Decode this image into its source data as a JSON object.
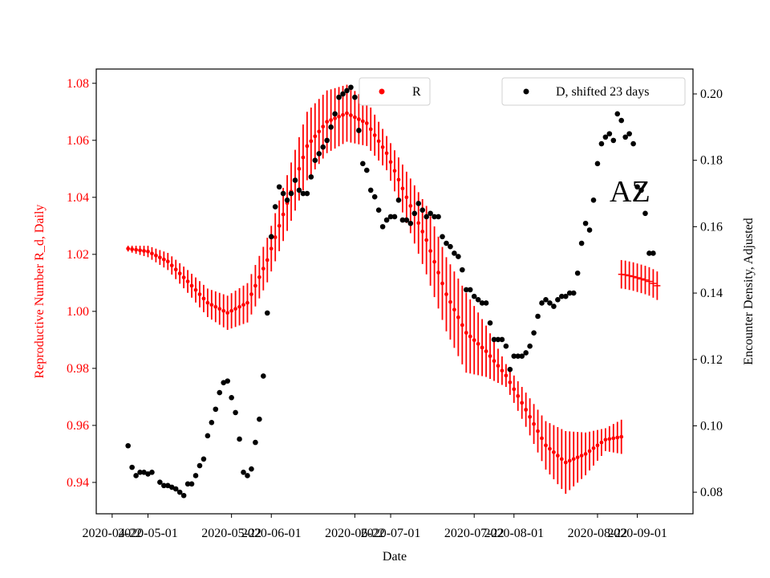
{
  "chart_data": {
    "type": "scatter",
    "xlabel": "Date",
    "ylabel_left": "Reproductive Number R_d, Daily",
    "ylabel_right": "Encounter Density, Adjusted",
    "annotation": "AZ",
    "x_range": [
      "2020-04-18",
      "2020-09-15"
    ],
    "ylim_left": [
      0.929,
      1.085
    ],
    "ylim_right": [
      0.0735,
      0.2075
    ],
    "x_ticks": [
      "2020-04-22",
      "2020-05-01",
      "2020-05-22",
      "2020-06-01",
      "2020-06-22",
      "2020-07-01",
      "2020-07-22",
      "2020-08-01",
      "2020-08-22",
      "2020-09-01"
    ],
    "yticks_left": [
      "0.94",
      "0.96",
      "0.98",
      "1.00",
      "1.02",
      "1.04",
      "1.06",
      "1.08"
    ],
    "yticks_right": [
      "0.08",
      "0.10",
      "0.12",
      "0.14",
      "0.16",
      "0.18",
      "0.20"
    ],
    "grid": false,
    "colors": {
      "R": "#ff0000",
      "D": "#000000",
      "left_axis": "#ff0000"
    },
    "legend": [
      {
        "label": "R",
        "color": "#ff0000",
        "placement": "top-center"
      },
      {
        "label": "D, shifted 23 days",
        "color": "#000000",
        "placement": "top-right"
      }
    ],
    "series": [
      {
        "name": "R",
        "axis": "left",
        "anchors": [
          [
            "2020-04-26",
            1.022
          ],
          [
            "2020-05-01",
            1.021
          ],
          [
            "2020-05-06",
            1.0175
          ],
          [
            "2020-05-11",
            1.0105
          ],
          [
            "2020-05-16",
            1.003
          ],
          [
            "2020-05-21",
            0.9995
          ],
          [
            "2020-05-26",
            1.003
          ],
          [
            "2020-05-31",
            1.018
          ],
          [
            "2020-06-05",
            1.038
          ],
          [
            "2020-06-10",
            1.058
          ],
          [
            "2020-06-15",
            1.0665
          ],
          [
            "2020-06-20",
            1.0695
          ],
          [
            "2020-06-25",
            1.066
          ],
          [
            "2020-06-30",
            1.0555
          ],
          [
            "2020-07-05",
            1.04
          ],
          [
            "2020-07-10",
            1.025
          ],
          [
            "2020-07-15",
            1.006
          ],
          [
            "2020-07-20",
            0.9925
          ],
          [
            "2020-07-25",
            0.986
          ],
          [
            "2020-07-30",
            0.9775
          ],
          [
            "2020-08-04",
            0.9655
          ],
          [
            "2020-08-09",
            0.953
          ],
          [
            "2020-08-14",
            0.947
          ],
          [
            "2020-08-19",
            0.95
          ],
          [
            "2020-08-24",
            0.955
          ],
          [
            "2020-08-28",
            0.956
          ]
        ],
        "error_halfwidth": [
          [
            "2020-04-26",
            0.001
          ],
          [
            "2020-05-01",
            0.002
          ],
          [
            "2020-05-11",
            0.004
          ],
          [
            "2020-05-21",
            0.006
          ],
          [
            "2020-06-01",
            0.008
          ],
          [
            "2020-06-10",
            0.012
          ],
          [
            "2020-06-20",
            0.01
          ],
          [
            "2020-06-30",
            0.006
          ],
          [
            "2020-07-10",
            0.012
          ],
          [
            "2020-07-20",
            0.014
          ],
          [
            "2020-07-30",
            0.004
          ],
          [
            "2020-08-04",
            0.006
          ],
          [
            "2020-08-14",
            0.011
          ],
          [
            "2020-08-24",
            0.004
          ],
          [
            "2020-08-28",
            0.006
          ]
        ],
        "tail": [
          [
            "2020-08-28",
            1.013
          ],
          [
            "2020-08-29",
            1.0128
          ],
          [
            "2020-08-30",
            1.0125
          ],
          [
            "2020-08-31",
            1.0122
          ],
          [
            "2020-09-01",
            1.0118
          ],
          [
            "2020-09-02",
            1.0114
          ],
          [
            "2020-09-03",
            1.011
          ],
          [
            "2020-09-04",
            1.0105
          ],
          [
            "2020-09-05",
            1.0098
          ],
          [
            "2020-09-06",
            1.009
          ]
        ],
        "tail_error_halfwidth": 0.005
      },
      {
        "name": "D, shifted 23 days",
        "axis": "right",
        "points": [
          [
            "2020-04-26",
            0.094
          ],
          [
            "2020-04-27",
            0.0875
          ],
          [
            "2020-04-28",
            0.085
          ],
          [
            "2020-04-29",
            0.086
          ],
          [
            "2020-04-30",
            0.086
          ],
          [
            "2020-05-01",
            0.0855
          ],
          [
            "2020-05-02",
            0.086
          ],
          [
            "2020-05-04",
            0.083
          ],
          [
            "2020-05-05",
            0.082
          ],
          [
            "2020-05-06",
            0.082
          ],
          [
            "2020-05-07",
            0.0815
          ],
          [
            "2020-05-08",
            0.081
          ],
          [
            "2020-05-09",
            0.08
          ],
          [
            "2020-05-10",
            0.079
          ],
          [
            "2020-05-11",
            0.0825
          ],
          [
            "2020-05-12",
            0.0825
          ],
          [
            "2020-05-13",
            0.085
          ],
          [
            "2020-05-14",
            0.088
          ],
          [
            "2020-05-15",
            0.09
          ],
          [
            "2020-05-16",
            0.097
          ],
          [
            "2020-05-17",
            0.101
          ],
          [
            "2020-05-18",
            0.105
          ],
          [
            "2020-05-19",
            0.11
          ],
          [
            "2020-05-20",
            0.113
          ],
          [
            "2020-05-21",
            0.1135
          ],
          [
            "2020-05-22",
            0.1085
          ],
          [
            "2020-05-23",
            0.104
          ],
          [
            "2020-05-24",
            0.096
          ],
          [
            "2020-05-25",
            0.086
          ],
          [
            "2020-05-26",
            0.085
          ],
          [
            "2020-05-27",
            0.087
          ],
          [
            "2020-05-28",
            0.095
          ],
          [
            "2020-05-29",
            0.102
          ],
          [
            "2020-05-30",
            0.115
          ],
          [
            "2020-05-31",
            0.134
          ],
          [
            "2020-06-01",
            0.157
          ],
          [
            "2020-06-02",
            0.166
          ],
          [
            "2020-06-03",
            0.172
          ],
          [
            "2020-06-04",
            0.17
          ],
          [
            "2020-06-05",
            0.168
          ],
          [
            "2020-06-06",
            0.17
          ],
          [
            "2020-06-07",
            0.174
          ],
          [
            "2020-06-08",
            0.171
          ],
          [
            "2020-06-09",
            0.17
          ],
          [
            "2020-06-10",
            0.17
          ],
          [
            "2020-06-11",
            0.175
          ],
          [
            "2020-06-12",
            0.18
          ],
          [
            "2020-06-13",
            0.182
          ],
          [
            "2020-06-14",
            0.184
          ],
          [
            "2020-06-15",
            0.186
          ],
          [
            "2020-06-16",
            0.19
          ],
          [
            "2020-06-17",
            0.194
          ],
          [
            "2020-06-18",
            0.199
          ],
          [
            "2020-06-19",
            0.2
          ],
          [
            "2020-06-20",
            0.201
          ],
          [
            "2020-06-21",
            0.202
          ],
          [
            "2020-06-22",
            0.199
          ],
          [
            "2020-06-23",
            0.189
          ],
          [
            "2020-06-24",
            0.179
          ],
          [
            "2020-06-25",
            0.177
          ],
          [
            "2020-06-26",
            0.171
          ],
          [
            "2020-06-27",
            0.169
          ],
          [
            "2020-06-28",
            0.165
          ],
          [
            "2020-06-29",
            0.16
          ],
          [
            "2020-06-30",
            0.162
          ],
          [
            "2020-07-01",
            0.163
          ],
          [
            "2020-07-02",
            0.163
          ],
          [
            "2020-07-03",
            0.168
          ],
          [
            "2020-07-04",
            0.162
          ],
          [
            "2020-07-05",
            0.162
          ],
          [
            "2020-07-06",
            0.161
          ],
          [
            "2020-07-07",
            0.164
          ],
          [
            "2020-07-08",
            0.167
          ],
          [
            "2020-07-09",
            0.165
          ],
          [
            "2020-07-10",
            0.163
          ],
          [
            "2020-07-11",
            0.164
          ],
          [
            "2020-07-12",
            0.163
          ],
          [
            "2020-07-13",
            0.163
          ],
          [
            "2020-07-14",
            0.157
          ],
          [
            "2020-07-15",
            0.155
          ],
          [
            "2020-07-16",
            0.154
          ],
          [
            "2020-07-17",
            0.152
          ],
          [
            "2020-07-18",
            0.151
          ],
          [
            "2020-07-19",
            0.147
          ],
          [
            "2020-07-20",
            0.141
          ],
          [
            "2020-07-21",
            0.141
          ],
          [
            "2020-07-22",
            0.139
          ],
          [
            "2020-07-23",
            0.138
          ],
          [
            "2020-07-24",
            0.137
          ],
          [
            "2020-07-25",
            0.137
          ],
          [
            "2020-07-26",
            0.131
          ],
          [
            "2020-07-27",
            0.126
          ],
          [
            "2020-07-28",
            0.126
          ],
          [
            "2020-07-29",
            0.126
          ],
          [
            "2020-07-30",
            0.124
          ],
          [
            "2020-07-31",
            0.117
          ],
          [
            "2020-08-01",
            0.121
          ],
          [
            "2020-08-02",
            0.121
          ],
          [
            "2020-08-03",
            0.121
          ],
          [
            "2020-08-04",
            0.122
          ],
          [
            "2020-08-05",
            0.124
          ],
          [
            "2020-08-06",
            0.128
          ],
          [
            "2020-08-07",
            0.133
          ],
          [
            "2020-08-08",
            0.137
          ],
          [
            "2020-08-09",
            0.138
          ],
          [
            "2020-08-10",
            0.137
          ],
          [
            "2020-08-11",
            0.136
          ],
          [
            "2020-08-12",
            0.138
          ],
          [
            "2020-08-13",
            0.139
          ],
          [
            "2020-08-14",
            0.139
          ],
          [
            "2020-08-15",
            0.14
          ],
          [
            "2020-08-16",
            0.14
          ],
          [
            "2020-08-17",
            0.146
          ],
          [
            "2020-08-18",
            0.155
          ],
          [
            "2020-08-19",
            0.161
          ],
          [
            "2020-08-20",
            0.159
          ],
          [
            "2020-08-21",
            0.168
          ],
          [
            "2020-08-22",
            0.179
          ],
          [
            "2020-08-23",
            0.185
          ],
          [
            "2020-08-24",
            0.187
          ],
          [
            "2020-08-25",
            0.188
          ],
          [
            "2020-08-26",
            0.186
          ],
          [
            "2020-08-27",
            0.194
          ],
          [
            "2020-08-28",
            0.192
          ],
          [
            "2020-08-29",
            0.187
          ],
          [
            "2020-08-30",
            0.188
          ],
          [
            "2020-08-31",
            0.185
          ],
          [
            "2020-09-01",
            0.172
          ],
          [
            "2020-09-02",
            0.171
          ],
          [
            "2020-09-03",
            0.164
          ],
          [
            "2020-09-04",
            0.152
          ],
          [
            "2020-09-05",
            0.152
          ]
        ]
      }
    ]
  }
}
